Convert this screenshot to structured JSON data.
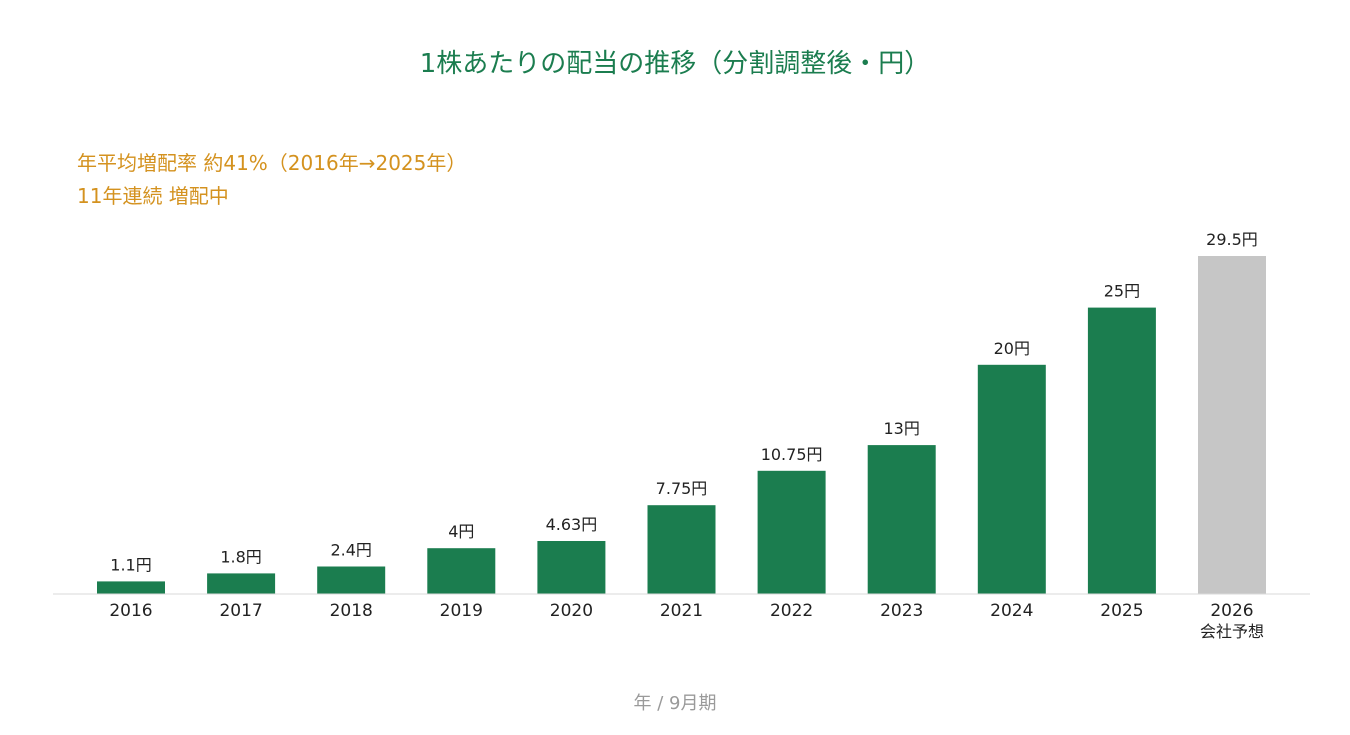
{
  "chart_data": {
    "type": "bar",
    "title": "1株あたりの配当の推移（分割調整後・円）",
    "annotations": [
      "年平均増配率 約41%（2016年→2025年）",
      "11年連続 増配中"
    ],
    "xlabel": "年 / 9月期",
    "ylabel": "",
    "categories": [
      "2016",
      "2017",
      "2018",
      "2019",
      "2020",
      "2021",
      "2022",
      "2023",
      "2024",
      "2025",
      "2026"
    ],
    "category_sublabels": [
      "",
      "",
      "",
      "",
      "",
      "",
      "",
      "",
      "",
      "",
      "会社予想"
    ],
    "values": [
      1.1,
      1.8,
      2.4,
      4,
      4.63,
      7.75,
      10.75,
      13,
      20,
      25,
      29.5
    ],
    "value_labels": [
      "1.1円",
      "1.8円",
      "2.4円",
      "4円",
      "4.63円",
      "7.75円",
      "10.75円",
      "13円",
      "20円",
      "25円",
      "29.5円"
    ],
    "forecast_index": 10,
    "ylim": [
      0,
      29.5
    ],
    "grid": false,
    "legend": "none",
    "colors": {
      "actual": "#1b7d4f",
      "forecast": "#c6c6c6",
      "title": "#1b7d4f",
      "annotation": "#d4921f",
      "axis": "#d9d9d9",
      "xlabel": "#9a9a9a"
    }
  }
}
